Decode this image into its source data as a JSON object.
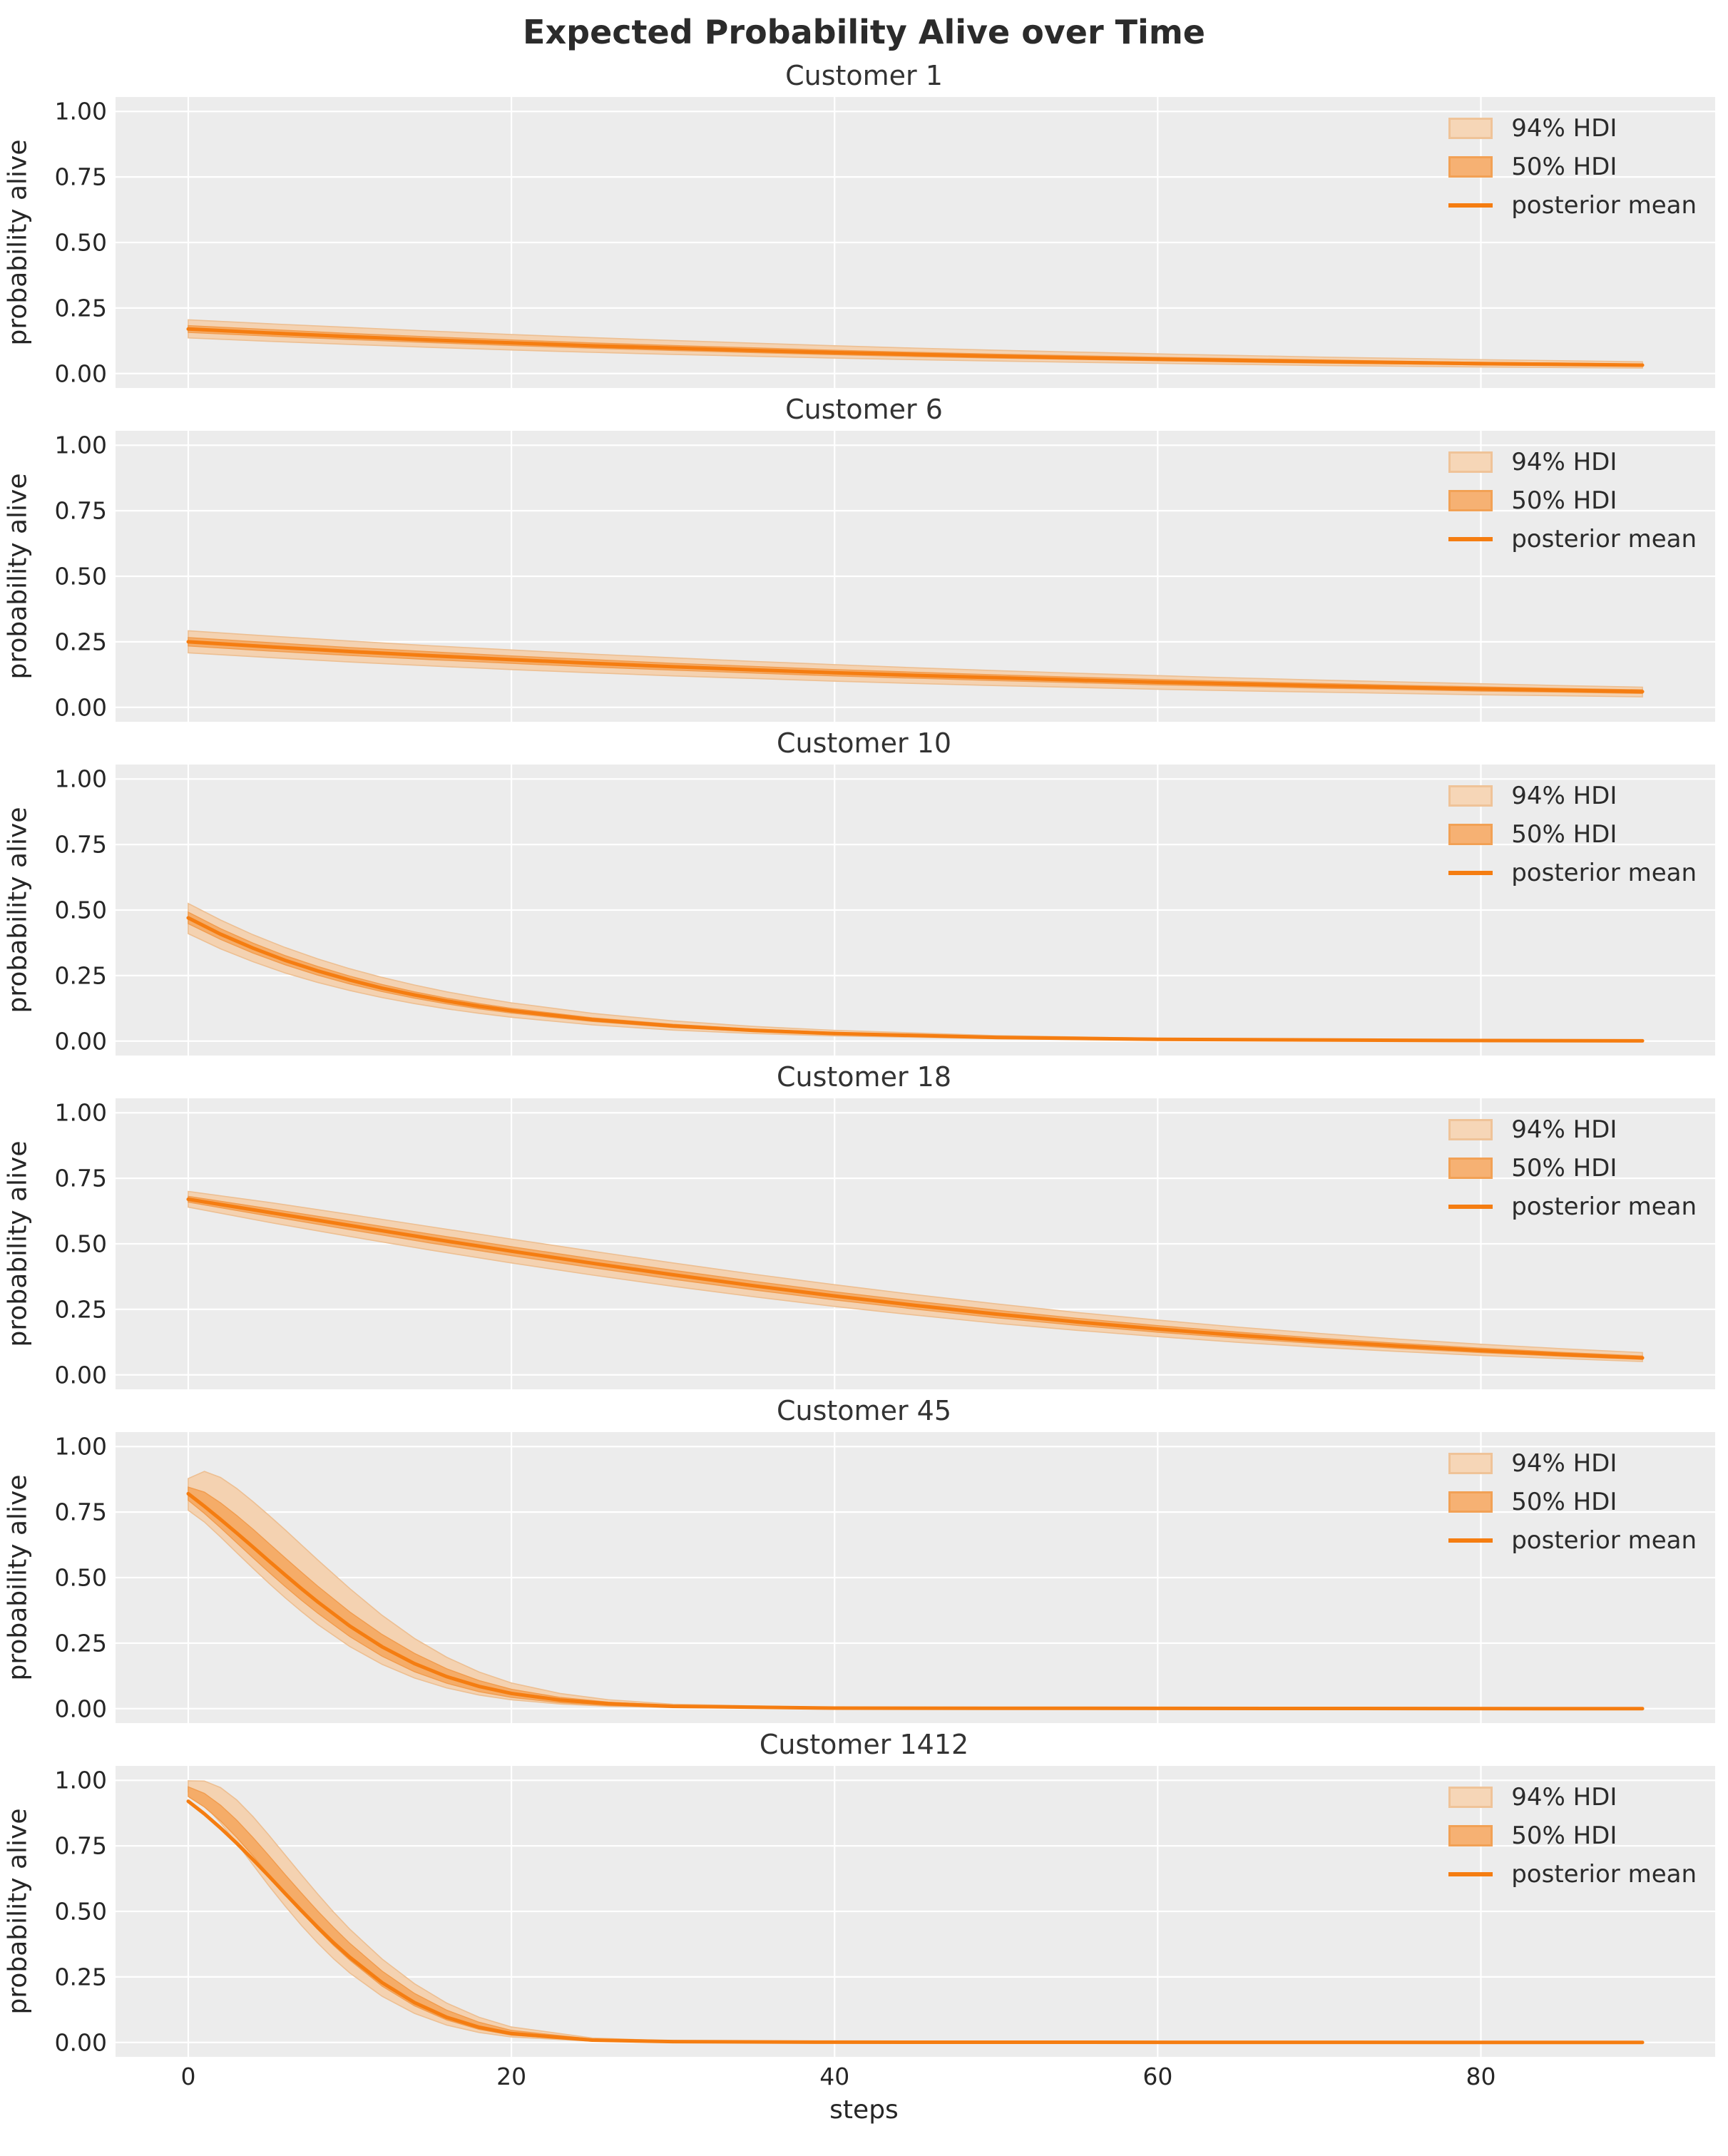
{
  "figure": {
    "title": "Expected Probability Alive over Time",
    "xlabel": "steps",
    "ylabel": "probability alive"
  },
  "legend": {
    "items": [
      {
        "label": "94% HDI",
        "swatch": "band-light"
      },
      {
        "label": "50% HDI",
        "swatch": "band-dark"
      },
      {
        "label": "posterior mean",
        "swatch": "line"
      }
    ]
  },
  "colors": {
    "plot_background": "#ececec",
    "grid": "#ffffff",
    "hdi94_fill": "#f4d2b1",
    "hdi94_edge": "#edbf92",
    "hdi50_fill": "#f5ac68",
    "hdi50_edge": "#f19c4e",
    "mean_line": "#f57d11",
    "text": "#262626"
  },
  "axis": {
    "xticks": [
      0,
      20,
      40,
      60,
      80
    ],
    "yticks": [
      1.0,
      0.75,
      0.5,
      0.25,
      0.0
    ],
    "ytick_labels": [
      "1.00",
      "0.75",
      "0.50",
      "0.25",
      "0.00"
    ],
    "xlim": [
      -4.5,
      94.5
    ],
    "ylim": [
      -0.055,
      1.055
    ],
    "grid": true,
    "legend_position": "upper right"
  },
  "chart_data": [
    {
      "type": "line",
      "title": "Customer 1",
      "x": [
        0,
        5,
        10,
        15,
        20,
        25,
        30,
        35,
        40,
        45,
        50,
        55,
        60,
        65,
        70,
        75,
        80,
        85,
        90
      ],
      "series": [
        {
          "name": "posterior mean",
          "values": [
            0.17,
            0.155,
            0.141,
            0.128,
            0.117,
            0.106,
            0.097,
            0.088,
            0.08,
            0.073,
            0.066,
            0.06,
            0.055,
            0.05,
            0.046,
            0.042,
            0.038,
            0.035,
            0.032
          ]
        },
        {
          "name": "94% HDI upper",
          "values": [
            0.205,
            0.19,
            0.176,
            0.162,
            0.149,
            0.137,
            0.126,
            0.116,
            0.106,
            0.097,
            0.089,
            0.082,
            0.075,
            0.069,
            0.063,
            0.058,
            0.053,
            0.049,
            0.045
          ]
        },
        {
          "name": "94% HDI lower",
          "values": [
            0.136,
            0.123,
            0.111,
            0.1,
            0.09,
            0.081,
            0.073,
            0.066,
            0.059,
            0.053,
            0.048,
            0.043,
            0.039,
            0.035,
            0.031,
            0.028,
            0.025,
            0.023,
            0.021
          ]
        },
        {
          "name": "50% HDI upper",
          "values": [
            0.183,
            0.168,
            0.153,
            0.14,
            0.128,
            0.117,
            0.107,
            0.098,
            0.089,
            0.081,
            0.074,
            0.068,
            0.062,
            0.057,
            0.052,
            0.047,
            0.043,
            0.04,
            0.036
          ]
        },
        {
          "name": "50% HDI lower",
          "values": [
            0.157,
            0.143,
            0.13,
            0.118,
            0.107,
            0.097,
            0.088,
            0.08,
            0.072,
            0.065,
            0.059,
            0.054,
            0.049,
            0.044,
            0.04,
            0.037,
            0.033,
            0.031,
            0.028
          ]
        }
      ]
    },
    {
      "type": "line",
      "title": "Customer 6",
      "x": [
        0,
        5,
        10,
        15,
        20,
        25,
        30,
        35,
        40,
        45,
        50,
        55,
        60,
        65,
        70,
        75,
        80,
        85,
        90
      ],
      "series": [
        {
          "name": "posterior mean",
          "values": [
            0.25,
            0.231,
            0.213,
            0.197,
            0.182,
            0.168,
            0.155,
            0.143,
            0.132,
            0.122,
            0.113,
            0.104,
            0.096,
            0.089,
            0.082,
            0.076,
            0.07,
            0.065,
            0.06
          ]
        },
        {
          "name": "94% HDI upper",
          "values": [
            0.292,
            0.272,
            0.253,
            0.235,
            0.219,
            0.203,
            0.189,
            0.175,
            0.163,
            0.151,
            0.14,
            0.13,
            0.121,
            0.112,
            0.104,
            0.097,
            0.09,
            0.083,
            0.077
          ]
        },
        {
          "name": "94% HDI lower",
          "values": [
            0.208,
            0.19,
            0.173,
            0.158,
            0.144,
            0.132,
            0.12,
            0.11,
            0.1,
            0.091,
            0.083,
            0.076,
            0.069,
            0.063,
            0.058,
            0.053,
            0.048,
            0.044,
            0.04
          ]
        },
        {
          "name": "50% HDI upper",
          "values": [
            0.266,
            0.247,
            0.228,
            0.212,
            0.196,
            0.182,
            0.168,
            0.156,
            0.144,
            0.134,
            0.124,
            0.115,
            0.106,
            0.098,
            0.091,
            0.084,
            0.078,
            0.072,
            0.067
          ]
        },
        {
          "name": "50% HDI lower",
          "values": [
            0.234,
            0.215,
            0.198,
            0.182,
            0.168,
            0.154,
            0.142,
            0.131,
            0.12,
            0.111,
            0.102,
            0.094,
            0.086,
            0.08,
            0.073,
            0.068,
            0.062,
            0.058,
            0.053
          ]
        }
      ]
    },
    {
      "type": "line",
      "title": "Customer 10",
      "x": [
        0,
        2,
        4,
        6,
        8,
        10,
        12,
        14,
        16,
        18,
        20,
        25,
        30,
        35,
        40,
        50,
        60,
        75,
        90
      ],
      "series": [
        {
          "name": "posterior mean",
          "values": [
            0.47,
            0.408,
            0.355,
            0.308,
            0.268,
            0.233,
            0.202,
            0.176,
            0.153,
            0.133,
            0.116,
            0.082,
            0.058,
            0.041,
            0.029,
            0.014,
            0.007,
            0.003,
            0.001
          ]
        },
        {
          "name": "94% HDI upper",
          "values": [
            0.525,
            0.462,
            0.406,
            0.357,
            0.314,
            0.276,
            0.243,
            0.214,
            0.188,
            0.166,
            0.146,
            0.106,
            0.077,
            0.056,
            0.041,
            0.021,
            0.011,
            0.005,
            0.002
          ]
        },
        {
          "name": "94% HDI lower",
          "values": [
            0.41,
            0.352,
            0.303,
            0.26,
            0.224,
            0.193,
            0.166,
            0.143,
            0.123,
            0.106,
            0.091,
            0.062,
            0.042,
            0.029,
            0.02,
            0.009,
            0.004,
            0.001,
            0.0
          ]
        },
        {
          "name": "50% HDI upper",
          "values": [
            0.492,
            0.429,
            0.374,
            0.326,
            0.285,
            0.248,
            0.216,
            0.188,
            0.164,
            0.143,
            0.125,
            0.089,
            0.064,
            0.046,
            0.033,
            0.016,
            0.008,
            0.004,
            0.001
          ]
        },
        {
          "name": "50% HDI lower",
          "values": [
            0.448,
            0.388,
            0.336,
            0.291,
            0.252,
            0.218,
            0.189,
            0.164,
            0.142,
            0.123,
            0.107,
            0.075,
            0.052,
            0.037,
            0.026,
            0.012,
            0.006,
            0.002,
            0.0
          ]
        }
      ]
    },
    {
      "type": "line",
      "title": "Customer 18",
      "x": [
        0,
        5,
        10,
        15,
        20,
        25,
        30,
        35,
        40,
        45,
        50,
        55,
        60,
        65,
        70,
        75,
        80,
        85,
        90
      ],
      "series": [
        {
          "name": "posterior mean",
          "values": [
            0.67,
            0.62,
            0.57,
            0.52,
            0.472,
            0.426,
            0.382,
            0.34,
            0.301,
            0.265,
            0.232,
            0.202,
            0.175,
            0.151,
            0.129,
            0.11,
            0.093,
            0.078,
            0.065
          ]
        },
        {
          "name": "94% HDI upper",
          "values": [
            0.7,
            0.658,
            0.612,
            0.565,
            0.518,
            0.472,
            0.427,
            0.384,
            0.344,
            0.306,
            0.271,
            0.238,
            0.209,
            0.182,
            0.158,
            0.136,
            0.117,
            0.1,
            0.085
          ]
        },
        {
          "name": "94% HDI lower",
          "values": [
            0.64,
            0.582,
            0.528,
            0.476,
            0.427,
            0.381,
            0.338,
            0.298,
            0.261,
            0.228,
            0.197,
            0.17,
            0.146,
            0.124,
            0.105,
            0.089,
            0.074,
            0.062,
            0.051
          ]
        },
        {
          "name": "50% HDI upper",
          "values": [
            0.681,
            0.634,
            0.586,
            0.537,
            0.489,
            0.443,
            0.399,
            0.357,
            0.317,
            0.281,
            0.247,
            0.216,
            0.188,
            0.163,
            0.14,
            0.12,
            0.102,
            0.086,
            0.072
          ]
        },
        {
          "name": "50% HDI lower",
          "values": [
            0.659,
            0.606,
            0.554,
            0.503,
            0.455,
            0.409,
            0.365,
            0.324,
            0.286,
            0.251,
            0.218,
            0.189,
            0.163,
            0.14,
            0.119,
            0.101,
            0.085,
            0.071,
            0.059
          ]
        }
      ]
    },
    {
      "type": "line",
      "title": "Customer 45",
      "x": [
        0,
        1,
        2,
        3,
        4,
        5,
        6,
        7,
        8,
        10,
        12,
        14,
        16,
        18,
        20,
        23,
        26,
        30,
        40,
        90
      ],
      "series": [
        {
          "name": "posterior mean",
          "values": [
            0.82,
            0.772,
            0.722,
            0.67,
            0.617,
            0.563,
            0.51,
            0.458,
            0.408,
            0.315,
            0.236,
            0.172,
            0.122,
            0.085,
            0.058,
            0.033,
            0.019,
            0.009,
            0.002,
            0.0
          ]
        },
        {
          "name": "94% HDI upper",
          "values": [
            0.878,
            0.905,
            0.882,
            0.84,
            0.79,
            0.737,
            0.682,
            0.625,
            0.568,
            0.458,
            0.356,
            0.268,
            0.196,
            0.14,
            0.098,
            0.058,
            0.034,
            0.017,
            0.004,
            0.001
          ]
        },
        {
          "name": "94% HDI lower",
          "values": [
            0.757,
            0.712,
            0.655,
            0.595,
            0.536,
            0.478,
            0.423,
            0.371,
            0.322,
            0.237,
            0.169,
            0.117,
            0.079,
            0.052,
            0.034,
            0.018,
            0.009,
            0.004,
            0.001,
            0.0
          ]
        },
        {
          "name": "50% HDI upper",
          "values": [
            0.845,
            0.826,
            0.785,
            0.737,
            0.685,
            0.63,
            0.575,
            0.521,
            0.468,
            0.369,
            0.283,
            0.211,
            0.152,
            0.107,
            0.074,
            0.043,
            0.025,
            0.012,
            0.003,
            0.0
          ]
        },
        {
          "name": "50% HDI lower",
          "values": [
            0.795,
            0.745,
            0.69,
            0.633,
            0.576,
            0.52,
            0.466,
            0.414,
            0.365,
            0.275,
            0.2,
            0.141,
            0.097,
            0.065,
            0.043,
            0.023,
            0.012,
            0.006,
            0.001,
            0.0
          ]
        }
      ]
    },
    {
      "type": "line",
      "title": "Customer 1412",
      "x": [
        0,
        1,
        2,
        3,
        4,
        5,
        6,
        7,
        8,
        9,
        10,
        12,
        14,
        16,
        18,
        20,
        25,
        30,
        40,
        90
      ],
      "series": [
        {
          "name": "posterior mean",
          "values": [
            0.92,
            0.872,
            0.818,
            0.76,
            0.698,
            0.634,
            0.568,
            0.503,
            0.44,
            0.38,
            0.325,
            0.228,
            0.152,
            0.096,
            0.058,
            0.034,
            0.009,
            0.003,
            0.001,
            0.0
          ]
        },
        {
          "name": "94% HDI upper",
          "values": [
            0.998,
            0.997,
            0.972,
            0.925,
            0.862,
            0.79,
            0.715,
            0.64,
            0.567,
            0.497,
            0.432,
            0.318,
            0.224,
            0.15,
            0.096,
            0.059,
            0.017,
            0.006,
            0.002,
            0.001
          ]
        },
        {
          "name": "94% HDI lower",
          "values": [
            0.955,
            0.905,
            0.838,
            0.76,
            0.678,
            0.597,
            0.52,
            0.447,
            0.38,
            0.319,
            0.265,
            0.176,
            0.111,
            0.066,
            0.038,
            0.021,
            0.005,
            0.001,
            0.0,
            0.0
          ]
        },
        {
          "name": "50% HDI upper",
          "values": [
            0.975,
            0.95,
            0.905,
            0.848,
            0.782,
            0.712,
            0.64,
            0.57,
            0.502,
            0.438,
            0.378,
            0.272,
            0.187,
            0.123,
            0.077,
            0.046,
            0.013,
            0.004,
            0.001,
            0.0
          ]
        },
        {
          "name": "50% HDI lower",
          "values": [
            0.938,
            0.898,
            0.845,
            0.782,
            0.712,
            0.64,
            0.568,
            0.498,
            0.432,
            0.37,
            0.314,
            0.215,
            0.14,
            0.086,
            0.05,
            0.028,
            0.007,
            0.002,
            0.0,
            0.0
          ]
        }
      ]
    }
  ]
}
